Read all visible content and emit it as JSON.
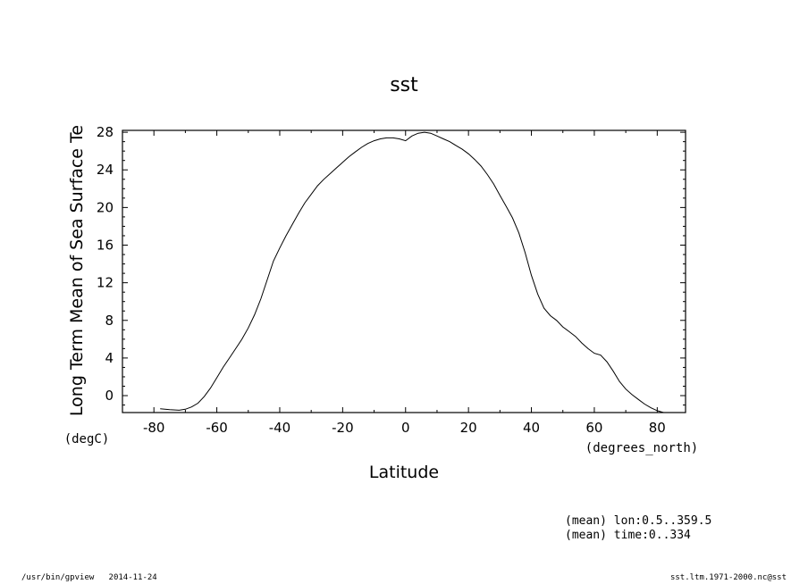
{
  "chart_data": {
    "type": "line",
    "title": "sst",
    "xlabel": "Latitude",
    "xunit": "(degrees_north)",
    "ylabel": "Long Term Mean of Sea Surface Te",
    "yunit": "(degC)",
    "xlim": [
      -90,
      89
    ],
    "ylim": [
      -1.8,
      28.2
    ],
    "xticks": [
      -80,
      -60,
      -40,
      -20,
      0,
      20,
      40,
      60,
      80
    ],
    "yticks": [
      0,
      4,
      8,
      12,
      16,
      20,
      24,
      28
    ],
    "grid": false,
    "legend": "none",
    "line_color": "#000000",
    "series": [
      {
        "x": [
          -78,
          -75,
          -72,
          -70,
          -68,
          -66,
          -64,
          -62,
          -60,
          -58,
          -56,
          -54,
          -52,
          -50,
          -48,
          -46,
          -44,
          -42,
          -40,
          -38,
          -36,
          -34,
          -32,
          -30,
          -28,
          -26,
          -24,
          -22,
          -20,
          -18,
          -16,
          -14,
          -12,
          -10,
          -8,
          -6,
          -4,
          -2,
          0,
          2,
          4,
          6,
          8,
          10,
          12,
          14,
          16,
          18,
          20,
          22,
          24,
          26,
          28,
          30,
          32,
          34,
          36,
          38,
          40,
          42,
          44,
          46,
          48,
          50,
          52,
          54,
          56,
          58,
          60,
          62,
          64,
          66,
          68,
          70,
          72,
          74,
          76,
          78,
          80,
          82
        ],
        "y": [
          -1.4,
          -1.5,
          -1.55,
          -1.45,
          -1.2,
          -0.8,
          -0.1,
          0.8,
          1.9,
          3.0,
          4.0,
          5.0,
          6.0,
          7.2,
          8.6,
          10.3,
          12.3,
          14.3,
          15.7,
          17.0,
          18.2,
          19.4,
          20.5,
          21.4,
          22.3,
          23.0,
          23.6,
          24.2,
          24.8,
          25.4,
          25.9,
          26.4,
          26.8,
          27.1,
          27.3,
          27.4,
          27.4,
          27.3,
          27.1,
          27.6,
          27.9,
          28.0,
          27.9,
          27.6,
          27.3,
          27.0,
          26.6,
          26.2,
          25.7,
          25.1,
          24.4,
          23.5,
          22.5,
          21.3,
          20.1,
          18.9,
          17.3,
          15.2,
          12.8,
          10.8,
          9.3,
          8.5,
          8.0,
          7.3,
          6.8,
          6.3,
          5.6,
          5.0,
          4.5,
          4.3,
          3.6,
          2.6,
          1.5,
          0.7,
          0.1,
          -0.4,
          -0.9,
          -1.3,
          -1.6,
          -1.8
        ]
      }
    ]
  },
  "annotations": {
    "line1": "(mean) lon:0.5..359.5",
    "line2": "(mean) time:0..334"
  },
  "footer": {
    "left": "/usr/bin/gpview   2014-11-24",
    "right": "sst.ltm.1971-2000.nc@sst"
  }
}
